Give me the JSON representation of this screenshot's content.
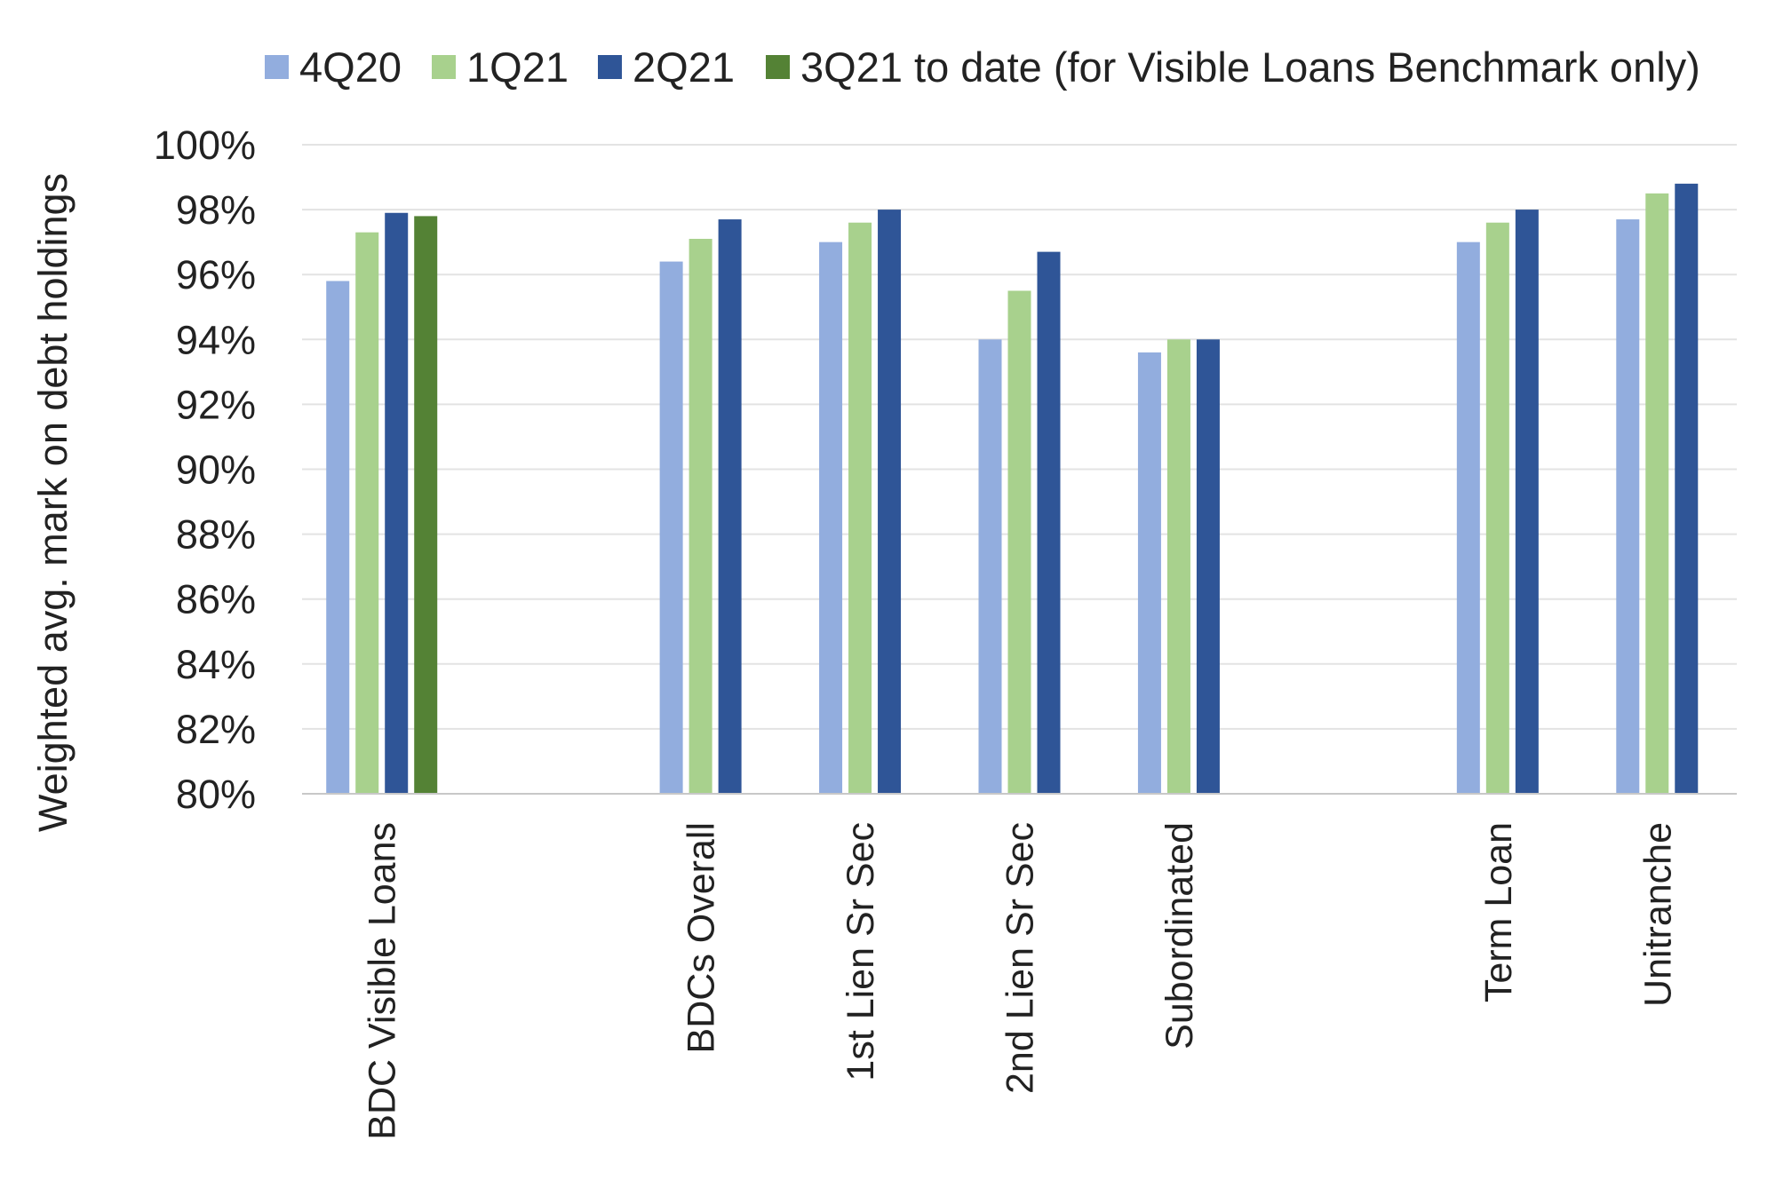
{
  "chart_data": {
    "type": "bar",
    "title": "",
    "xlabel": "",
    "ylabel": "Weighted avg. mark on debt holdings",
    "ylim": [
      80,
      100
    ],
    "y_ticks": [
      "80%",
      "82%",
      "84%",
      "86%",
      "88%",
      "90%",
      "92%",
      "94%",
      "96%",
      "98%",
      "100%"
    ],
    "grid": true,
    "legend_position": "top",
    "categories": [
      "BDC Visible Loans",
      "",
      "BDCs Overall",
      "1st Lien Sr Sec",
      "2nd Lien Sr Sec",
      "Subordinated",
      "",
      "Term Loan",
      "Unitranche"
    ],
    "series": [
      {
        "name": "4Q20",
        "color": "#92ADDE",
        "values": [
          95.8,
          null,
          96.4,
          97.0,
          94.0,
          93.6,
          null,
          97.0,
          97.7
        ]
      },
      {
        "name": "1Q21",
        "color": "#A8D18D",
        "values": [
          97.3,
          null,
          97.1,
          97.6,
          95.5,
          94.0,
          null,
          97.6,
          98.5
        ]
      },
      {
        "name": "2Q21",
        "color": "#2F5597",
        "values": [
          97.9,
          null,
          97.7,
          98.0,
          96.7,
          94.0,
          null,
          98.0,
          98.8
        ]
      },
      {
        "name": "3Q21 to date (for Visible Loans Benchmark only)",
        "color": "#548235",
        "values": [
          97.8,
          null,
          null,
          null,
          null,
          null,
          null,
          null,
          null
        ]
      }
    ]
  }
}
